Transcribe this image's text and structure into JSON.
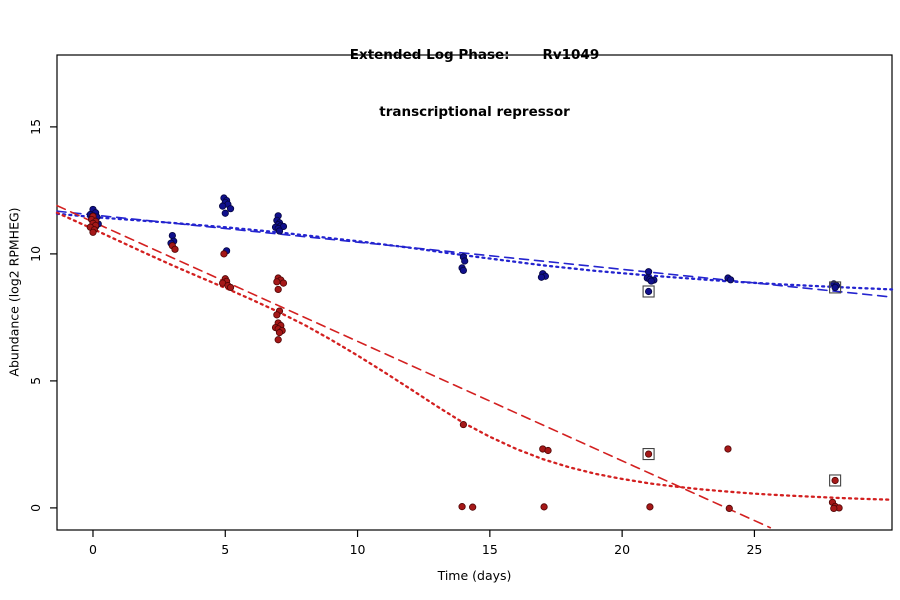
{
  "chart_data": {
    "type": "scatter",
    "title_line1": "Extended Log Phase:       Rv1049",
    "title_line2": "transcriptional repressor",
    "xlabel": "Time  (days)",
    "ylabel": "Abundance  (log2 RPMHEG)",
    "xlim": [
      -1.36,
      30.2
    ],
    "ylim": [
      -0.87,
      17.83
    ],
    "x_ticks": [
      0,
      5,
      10,
      15,
      20,
      25
    ],
    "y_ticks": [
      0,
      5,
      10,
      15
    ],
    "grid": false,
    "legend": null,
    "series": [
      {
        "name": "series-blue",
        "color": "#10108c",
        "edge": "#05053f",
        "points": [
          [
            0,
            11.75
          ],
          [
            0.1,
            11.62
          ],
          [
            -0.1,
            11.55
          ],
          [
            0,
            11.5
          ],
          [
            0.15,
            11.45
          ],
          [
            -0.05,
            11.38
          ],
          [
            0.05,
            11.3
          ],
          [
            0.2,
            11.18
          ],
          [
            0.1,
            11.08
          ],
          [
            3,
            10.72
          ],
          [
            3.05,
            10.5
          ],
          [
            2.95,
            10.42
          ],
          [
            4.95,
            12.2
          ],
          [
            5.05,
            12.1
          ],
          [
            5,
            12.02
          ],
          [
            5.1,
            11.95
          ],
          [
            4.9,
            11.88
          ],
          [
            5.2,
            11.78
          ],
          [
            5,
            11.6
          ],
          [
            5.05,
            10.12
          ],
          [
            7,
            11.5
          ],
          [
            6.95,
            11.32
          ],
          [
            7.05,
            11.22
          ],
          [
            7,
            11.15
          ],
          [
            7.1,
            11.1
          ],
          [
            6.9,
            11.05
          ],
          [
            7.2,
            11.08
          ],
          [
            7,
            11.0
          ],
          [
            7.05,
            10.9
          ],
          [
            14,
            9.88
          ],
          [
            14.05,
            9.72
          ],
          [
            13.95,
            9.45
          ],
          [
            14,
            9.35
          ],
          [
            17,
            9.22
          ],
          [
            17.1,
            9.12
          ],
          [
            16.95,
            9.08
          ],
          [
            21,
            9.3
          ],
          [
            20.95,
            9.05
          ],
          [
            21.05,
            9.0
          ],
          [
            21.2,
            8.97
          ],
          [
            21.1,
            8.93
          ],
          [
            24,
            9.05
          ],
          [
            24.1,
            8.98
          ],
          [
            28,
            8.82
          ],
          [
            28.1,
            8.75
          ]
        ]
      },
      {
        "name": "series-red",
        "color": "#a51818",
        "edge": "#4f0606",
        "points": [
          [
            0,
            11.48
          ],
          [
            -0.05,
            11.35
          ],
          [
            0.1,
            11.28
          ],
          [
            0,
            11.2
          ],
          [
            0.1,
            11.12
          ],
          [
            -0.1,
            11.05
          ],
          [
            0.05,
            10.95
          ],
          [
            0,
            10.85
          ],
          [
            3,
            10.32
          ],
          [
            3.1,
            10.18
          ],
          [
            4.95,
            10.0
          ],
          [
            5,
            9.02
          ],
          [
            5.05,
            8.92
          ],
          [
            4.9,
            8.85
          ],
          [
            5.1,
            8.75
          ],
          [
            5.2,
            8.68
          ],
          [
            7,
            9.05
          ],
          [
            7.1,
            8.97
          ],
          [
            6.95,
            8.9
          ],
          [
            7.2,
            8.85
          ],
          [
            7,
            8.6
          ],
          [
            7.05,
            7.75
          ],
          [
            6.95,
            7.6
          ],
          [
            7,
            7.28
          ],
          [
            7.1,
            7.18
          ],
          [
            6.9,
            7.1
          ],
          [
            7,
            7.05
          ],
          [
            7.15,
            6.98
          ],
          [
            7.05,
            6.9
          ],
          [
            7,
            6.62
          ],
          [
            14,
            3.28
          ],
          [
            13.95,
            0.05
          ],
          [
            14.35,
            0.03
          ],
          [
            17,
            2.32
          ],
          [
            17.2,
            2.26
          ],
          [
            17.05,
            0.04
          ],
          [
            21.05,
            0.04
          ],
          [
            24,
            2.32
          ],
          [
            24.05,
            -0.02
          ],
          [
            27.95,
            0.22
          ],
          [
            28.05,
            0.06
          ],
          [
            28.2,
            0.0
          ],
          [
            28,
            -0.02
          ]
        ]
      }
    ],
    "flagged_points": [
      {
        "series": 0,
        "x": 21,
        "y": 8.52
      },
      {
        "series": 0,
        "x": 28.05,
        "y": 8.68
      },
      {
        "series": 1,
        "x": 21,
        "y": 2.12
      },
      {
        "series": 1,
        "x": 28.05,
        "y": 1.08
      }
    ],
    "trend_lines": [
      {
        "name": "blue-dashed-fit",
        "color": "#2424cf",
        "dash": "9 6",
        "width": 1.6,
        "points": [
          [
            -1.36,
            11.68
          ],
          [
            30.2,
            8.3
          ]
        ]
      },
      {
        "name": "blue-dotted-fit",
        "color": "#2424cf",
        "dash": "2 4.2",
        "width": 2.3,
        "points": [
          [
            -1.36,
            11.58
          ],
          [
            0,
            11.45
          ],
          [
            3,
            11.22
          ],
          [
            5,
            11.05
          ],
          [
            7,
            10.85
          ],
          [
            10,
            10.5
          ],
          [
            12,
            10.24
          ],
          [
            14,
            9.95
          ],
          [
            17,
            9.55
          ],
          [
            19,
            9.33
          ],
          [
            21,
            9.15
          ],
          [
            24,
            8.92
          ],
          [
            26,
            8.8
          ],
          [
            28,
            8.7
          ],
          [
            30.2,
            8.6
          ]
        ]
      },
      {
        "name": "red-dashed-fit",
        "color": "#d32020",
        "dash": "9 6",
        "width": 1.6,
        "points": [
          [
            -1.36,
            11.9
          ],
          [
            25.6,
            -0.78
          ]
        ]
      },
      {
        "name": "red-dotted-fit",
        "color": "#d32020",
        "dash": "2 4.2",
        "width": 2.3,
        "points": [
          [
            -1.36,
            11.62
          ],
          [
            0,
            10.98
          ],
          [
            1,
            10.5
          ],
          [
            2,
            10.02
          ],
          [
            3,
            9.55
          ],
          [
            4,
            9.1
          ],
          [
            5,
            8.66
          ],
          [
            6,
            8.2
          ],
          [
            7,
            7.72
          ],
          [
            8,
            7.2
          ],
          [
            9,
            6.62
          ],
          [
            10,
            6.0
          ],
          [
            11,
            5.35
          ],
          [
            12,
            4.68
          ],
          [
            13,
            4.0
          ],
          [
            14,
            3.35
          ],
          [
            15,
            2.8
          ],
          [
            16,
            2.32
          ],
          [
            17,
            1.92
          ],
          [
            18,
            1.6
          ],
          [
            19,
            1.34
          ],
          [
            20,
            1.14
          ],
          [
            21,
            0.97
          ],
          [
            22,
            0.84
          ],
          [
            23,
            0.73
          ],
          [
            24,
            0.64
          ],
          [
            25,
            0.56
          ],
          [
            26,
            0.5
          ],
          [
            27,
            0.45
          ],
          [
            28,
            0.4
          ],
          [
            29,
            0.36
          ],
          [
            30.2,
            0.32
          ]
        ]
      }
    ]
  }
}
